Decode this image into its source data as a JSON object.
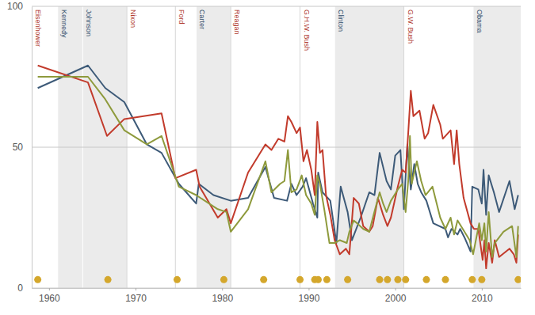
{
  "chart_data": {
    "type": "line",
    "xlim": [
      1958,
      2014.5
    ],
    "xticks": [
      1960,
      1970,
      1980,
      1990,
      2000,
      2010
    ],
    "ylim": [
      0,
      100
    ],
    "yticks": [
      0,
      50,
      100
    ],
    "grid": true,
    "annotations": [
      {
        "label": "Eisenhower",
        "start": 1958,
        "end": 1961,
        "colors": [
          "#b03a2e",
          "#ffffff"
        ]
      },
      {
        "label": "Kennedy",
        "start": 1961,
        "end": 1963.9,
        "colors": [
          "#34506d",
          "#ebebeb"
        ]
      },
      {
        "label": "Johnson",
        "start": 1963.9,
        "end": 1969,
        "colors": [
          "#34506d",
          "#ebebeb"
        ]
      },
      {
        "label": "Nixon",
        "start": 1969,
        "end": 1974.6,
        "colors": [
          "#b03a2e",
          "#ffffff"
        ]
      },
      {
        "label": "Ford",
        "start": 1974.6,
        "end": 1977,
        "colors": [
          "#b03a2e",
          "#ffffff"
        ]
      },
      {
        "label": "Carter",
        "start": 1977,
        "end": 1981,
        "colors": [
          "#34506d",
          "#ebebeb"
        ]
      },
      {
        "label": "Reagan",
        "start": 1981,
        "end": 1989,
        "colors": [
          "#b03a2e",
          "#ffffff"
        ]
      },
      {
        "label": "G.H.W. Bush",
        "start": 1989,
        "end": 1993,
        "colors": [
          "#b03a2e",
          "#ffffff"
        ]
      },
      {
        "label": "Clinton",
        "start": 1993,
        "end": 2001,
        "colors": [
          "#34506d",
          "#ebebeb"
        ]
      },
      {
        "label": "G.W. Bush",
        "start": 2001,
        "end": 2009,
        "colors": [
          "#b03a2e",
          "#ffffff"
        ]
      },
      {
        "label": "Obama",
        "start": 2009,
        "end": 2014.5,
        "colors": [
          "#34506d",
          "#ebebeb"
        ]
      }
    ],
    "series": [
      {
        "color": "#3d5a78",
        "type": "line",
        "x": [
          1958.7,
          1964.5,
          1966.5,
          1968.7,
          1971.3,
          1973,
          1975,
          1977,
          1977.3,
          1979,
          1981,
          1983,
          1985,
          1986,
          1987.5,
          1988,
          1988.6,
          1989.3,
          1989.7,
          1990.5,
          1991,
          1991.1,
          1991.6,
          1992.5,
          1993.2,
          1993.7,
          1994.5,
          1995,
          1996,
          1997,
          1997.6,
          1998.2,
          1999,
          1999.5,
          2000,
          2000.6,
          2001,
          2001.4,
          2001.8,
          2002.2,
          2002.6,
          2003,
          2003.6,
          2004.4,
          2005.8,
          2006.1,
          2006.5,
          2007.2,
          2007.5,
          2008,
          2008.7,
          2008.9,
          2009.6,
          2010,
          2010.2,
          2010.5,
          2010.8,
          2011.4,
          2012,
          2013.2,
          2013.8,
          2014.2
        ],
        "values": [
          71,
          79,
          71,
          66,
          51,
          48,
          37,
          30,
          37,
          33,
          31,
          32,
          43,
          32,
          31,
          37,
          33,
          36,
          39,
          30,
          25,
          41,
          34,
          31,
          16,
          36,
          27,
          17,
          25,
          34,
          33,
          48,
          38,
          35,
          47,
          49,
          28,
          51,
          35,
          44,
          37,
          34,
          31,
          23,
          21,
          18,
          21,
          19,
          21,
          18,
          13,
          36,
          35,
          30,
          42,
          26,
          40,
          34,
          27,
          38,
          28,
          33
        ]
      },
      {
        "color": "#c23b2c",
        "type": "line",
        "x": [
          1958.7,
          1964.5,
          1966.7,
          1968.7,
          1973,
          1974.6,
          1977,
          1977.4,
          1979.5,
          1980.5,
          1981,
          1983,
          1985,
          1985.7,
          1986.5,
          1987.2,
          1987.6,
          1988,
          1988.6,
          1989,
          1989.4,
          1989.8,
          1990.3,
          1990.7,
          1991,
          1991.3,
          1991.6,
          1992,
          1992.5,
          1993,
          1993.6,
          1994.3,
          1994.7,
          1995.2,
          1995.8,
          1996.3,
          1997,
          1997.4,
          1998,
          1998.6,
          1999.1,
          1999.5,
          2000.3,
          2000.8,
          2001.2,
          2001.5,
          2001.8,
          2002.1,
          2002.8,
          2003.4,
          2003.8,
          2004.4,
          2005.2,
          2005.5,
          2006.4,
          2006.8,
          2007.1,
          2007.4,
          2007.9,
          2008.7,
          2009.1,
          2009.6,
          2010.1,
          2010.3,
          2010.5,
          2010.8,
          2011.2,
          2011.5,
          2012,
          2013.2,
          2013.7,
          2014,
          2014.2
        ],
        "values": [
          79,
          73,
          54,
          60,
          62,
          39,
          42,
          36,
          25,
          28,
          23,
          41,
          51,
          49,
          53,
          52,
          61,
          59,
          55,
          57,
          45,
          49,
          42,
          33,
          59,
          48,
          49,
          33,
          26,
          17,
          12,
          14,
          12,
          32,
          30,
          22,
          20,
          22,
          32,
          26,
          22,
          25,
          36,
          42,
          41,
          55,
          70,
          61,
          63,
          53,
          55,
          65,
          58,
          53,
          56,
          44,
          56,
          44,
          32,
          23,
          21,
          21,
          10,
          17,
          7,
          16,
          9,
          17,
          11,
          14,
          12,
          9,
          19
        ]
      },
      {
        "color": "#8e9a3c",
        "type": "line",
        "x": [
          1958.7,
          1964.5,
          1966.5,
          1968.7,
          1971.3,
          1973,
          1975,
          1977,
          1979.5,
          1980.5,
          1981,
          1983,
          1985,
          1985.7,
          1986.7,
          1987.2,
          1987.6,
          1988,
          1988.6,
          1989.2,
          1989.7,
          1990.3,
          1990.7,
          1991,
          1991.3,
          1991.8,
          1992.4,
          1993,
          1993.6,
          1994.4,
          1994.7,
          1995.2,
          1995.6,
          1996.3,
          1997,
          1997.5,
          1998.2,
          1998.6,
          1999,
          1999.5,
          2000.3,
          2000.8,
          2001.2,
          2001.5,
          2001.7,
          2001.9,
          2002.5,
          2003,
          2003.5,
          2004.3,
          2005.2,
          2005.8,
          2006.4,
          2006.8,
          2007.2,
          2008.6,
          2009,
          2009.7,
          2010,
          2010.3,
          2010.5,
          2010.8,
          2011.2,
          2011.5,
          2012.5,
          2013.5,
          2014,
          2014.2
        ],
        "values": [
          75,
          75,
          67,
          56,
          51,
          54,
          36,
          33,
          28,
          27,
          20,
          28,
          45,
          34,
          37,
          38,
          49,
          34,
          35,
          40,
          33,
          30,
          26,
          40,
          37,
          28,
          16,
          16,
          17,
          16,
          20,
          24,
          23,
          21,
          20,
          26,
          34,
          30,
          27,
          31,
          35,
          37,
          27,
          38,
          54,
          37,
          45,
          38,
          33,
          36,
          25,
          21,
          25,
          19,
          24,
          17,
          12,
          23,
          17,
          23,
          13,
          27,
          11,
          16,
          20,
          22,
          11,
          22
        ]
      },
      {
        "color": "#d4a72c",
        "type": "scatter",
        "marker": "circle",
        "x": [
          1958.7,
          1966.8,
          1974.8,
          1980.2,
          1984.8,
          1989,
          1990.7,
          1991.1,
          1992.1,
          1994.5,
          1998.2,
          1999.1,
          2000.3,
          2001.2,
          2003.6,
          2005.8,
          2008.9,
          2010,
          2014.2
        ],
        "values": [
          3,
          3,
          3,
          3,
          3,
          3,
          3,
          3,
          3,
          3,
          3,
          3,
          3,
          3,
          3,
          3,
          3,
          3,
          3
        ]
      }
    ]
  }
}
